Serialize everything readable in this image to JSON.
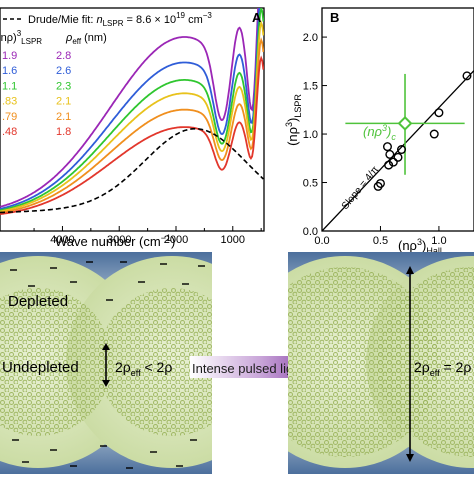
{
  "panel_a": {
    "label": "A",
    "legend_fit_label": "Drude/Mie fit: ",
    "legend_fit_n": "n",
    "legend_fit_sub": "LSPR",
    "legend_fit_value": " = 8.6 × 10",
    "legend_fit_exp": "19",
    "legend_fit_unit": " cm",
    "legend_fit_unit_exp": "−3",
    "col1_header": "(nρ)",
    "col1_header_sup": "3",
    "col1_header_sub": "LSPR",
    "col2_header": "ρ",
    "col2_header_sub": "eff",
    "col2_header_unit": " (nm)",
    "xlabel": "Wave number (cm",
    "xlabel_exp": "−1",
    "xlabel_close": ")"
  },
  "panel_b": {
    "label": "B",
    "ylabel": "(nρ",
    "ylabel_sup": "3",
    "ylabel_close": ")",
    "ylabel_sub": "LSPR",
    "xlabel": "(nρ",
    "xlabel_sup": "3",
    "xlabel_close": ")",
    "xlabel_sub": "Hall",
    "slope_label": "Slope = 4/π",
    "c_label": "(nρ",
    "c_label_sup": "3",
    "c_label_close": ")",
    "c_label_sub": "c"
  },
  "bottom": {
    "depleted": "Depleted",
    "undepleted": "Undepleted",
    "rho_left": "2ρ",
    "rho_left_sub": "eff",
    "rho_left_rest": " < 2ρ",
    "arrow_text": "Intense pulsed light",
    "rho_right": "2ρ",
    "rho_right_sub": "eff",
    "rho_right_rest": " = 2ρ"
  },
  "colors": {
    "purple": "#9b27b6",
    "blue": "#2f5dd8",
    "green": "#2fc62f",
    "yellow": "#e8c21c",
    "orange": "#f08f1e",
    "red": "#e2372c",
    "green_marker": "#4fc33b",
    "depletion_bg": "#5c7ea8",
    "particle": "#d7e6b8"
  },
  "chart_data": [
    {
      "type": "line",
      "xlabel": "Wave number (cm−1)",
      "x_ticks": [
        "4000",
        "3000",
        "2000",
        "1000"
      ],
      "xlim": [
        5100,
        450
      ],
      "legend": {
        "fit": "Drude/Mie fit: nLSPR = 8.6 × 10^19 cm−3",
        "rows": [
          {
            "color": "#9b27b6",
            "np3": "1.9",
            "rho_eff": "2.8"
          },
          {
            "color": "#2f5dd8",
            "np3": "1.6",
            "rho_eff": "2.6"
          },
          {
            "color": "#2fc62f",
            "np3": "1.1",
            "rho_eff": "2.3"
          },
          {
            "color": "#e8c21c",
            "np3": ".83",
            "rho_eff": "2.1"
          },
          {
            "color": "#f08f1e",
            "np3": ".79",
            "rho_eff": "2.1"
          },
          {
            "color": "#e2372c",
            "np3": ".48",
            "rho_eff": "1.8"
          }
        ]
      },
      "series_peak_values": [
        1.0,
        0.88,
        0.8,
        0.74,
        0.66,
        0.57
      ],
      "series": [
        {
          "name": "1.9",
          "color": "#9b27b6",
          "amp": 1.0
        },
        {
          "name": "1.6",
          "color": "#2f5dd8",
          "amp": 0.88
        },
        {
          "name": "1.1",
          "color": "#2fc62f",
          "amp": 0.8
        },
        {
          "name": ".83",
          "color": "#e8c21c",
          "amp": 0.74
        },
        {
          "name": ".79",
          "color": "#f08f1e",
          "amp": 0.66
        },
        {
          "name": ".48",
          "color": "#e2372c",
          "amp": 0.57
        }
      ],
      "fit_series": {
        "dashed": true,
        "color": "#000000"
      }
    },
    {
      "type": "scatter",
      "xlabel": "(nρ3)Hall",
      "ylabel": "(nρ3)LSPR",
      "xlim": [
        0.0,
        1.3
      ],
      "ylim": [
        0.0,
        2.3
      ],
      "x_ticks": [
        "0.0",
        "0.5",
        "1.0"
      ],
      "y_ticks": [
        "0.0",
        "0.5",
        "1.0",
        "1.5",
        "2.0"
      ],
      "points": [
        {
          "x": 0.48,
          "y": 0.46
        },
        {
          "x": 0.5,
          "y": 0.49
        },
        {
          "x": 0.56,
          "y": 0.87
        },
        {
          "x": 0.57,
          "y": 0.68
        },
        {
          "x": 0.58,
          "y": 0.79
        },
        {
          "x": 0.61,
          "y": 0.71
        },
        {
          "x": 0.65,
          "y": 0.76
        },
        {
          "x": 0.68,
          "y": 0.84
        },
        {
          "x": 0.96,
          "y": 1.0
        },
        {
          "x": 1.0,
          "y": 1.22
        },
        {
          "x": 1.24,
          "y": 1.6
        }
      ],
      "critical_point": {
        "x": 0.71,
        "y": 1.11,
        "x_err": [
          0.2,
          1.22
        ],
        "y_err": [
          0.58,
          1.62
        ]
      },
      "fit_line": {
        "slope": 1.273,
        "intercept": 0.0
      }
    }
  ]
}
